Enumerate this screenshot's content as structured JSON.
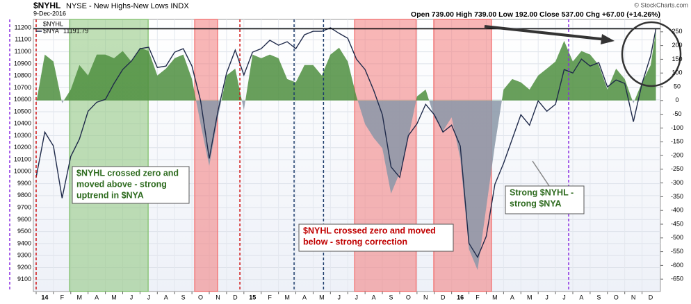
{
  "chart_data": {
    "type": "line",
    "title": "$NYHL",
    "subtitle": "NYSE - New Highs-New Lows INDX",
    "date": "9-Dec-2016",
    "ohlc": "Open 739.00 High 739.00 Low 192.00 Close 537.00 Chg +67.00 (+14.26%)",
    "credit": "© StockCharts.com",
    "xlim": [
      -0.16,
      36.06
    ],
    "xticks": [
      {
        "value": 0,
        "label": "14"
      },
      {
        "value": 1,
        "label": "F"
      },
      {
        "value": 2,
        "label": "M"
      },
      {
        "value": 3,
        "label": "A"
      },
      {
        "value": 4,
        "label": "M"
      },
      {
        "value": 5,
        "label": "J"
      },
      {
        "value": 6,
        "label": "J"
      },
      {
        "value": 7,
        "label": "A"
      },
      {
        "value": 8,
        "label": "S"
      },
      {
        "value": 9,
        "label": "O"
      },
      {
        "value": 10,
        "label": "N"
      },
      {
        "value": 11,
        "label": "D"
      },
      {
        "value": 12,
        "label": "15"
      },
      {
        "value": 13,
        "label": "F"
      },
      {
        "value": 14,
        "label": "M"
      },
      {
        "value": 15,
        "label": "A"
      },
      {
        "value": 16,
        "label": "M"
      },
      {
        "value": 17,
        "label": "J"
      },
      {
        "value": 18,
        "label": "J"
      },
      {
        "value": 19,
        "label": "A"
      },
      {
        "value": 20,
        "label": "S"
      },
      {
        "value": 21,
        "label": "O"
      },
      {
        "value": 22,
        "label": "N"
      },
      {
        "value": 23,
        "label": "D"
      },
      {
        "value": 24,
        "label": "16"
      },
      {
        "value": 25,
        "label": "F"
      },
      {
        "value": 26,
        "label": "M"
      },
      {
        "value": 27,
        "label": "A"
      },
      {
        "value": 28,
        "label": "M"
      },
      {
        "value": 29,
        "label": "J"
      },
      {
        "value": 30,
        "label": "J"
      },
      {
        "value": 31,
        "label": "A"
      },
      {
        "value": 32,
        "label": "S"
      },
      {
        "value": 33,
        "label": "O"
      },
      {
        "value": 34,
        "label": "N"
      },
      {
        "value": 35,
        "label": "D"
      }
    ],
    "ylim": [
      9000,
      11270
    ],
    "yticks": [
      9100,
      9200,
      9300,
      9400,
      9500,
      9600,
      9700,
      9800,
      9900,
      10000,
      10100,
      10200,
      10300,
      10400,
      10500,
      10600,
      10700,
      10800,
      10900,
      11000,
      11100,
      11200
    ],
    "y2lim": [
      -695,
      295
    ],
    "y2ticks": [
      -650,
      -600,
      -550,
      -500,
      -450,
      -400,
      -350,
      -300,
      -250,
      -200,
      -150,
      -100,
      -50,
      0,
      50,
      100,
      150,
      200,
      250
    ],
    "grid": true,
    "x": [
      0,
      0.5,
      1,
      1.5,
      2,
      2.5,
      3,
      3.5,
      4,
      4.5,
      5,
      5.5,
      6,
      6.5,
      7,
      7.5,
      8,
      8.5,
      9,
      9.5,
      10,
      10.5,
      11,
      11.5,
      12,
      12.5,
      13,
      13.5,
      14,
      14.5,
      15,
      15.5,
      16,
      16.5,
      17,
      17.5,
      18,
      18.5,
      19,
      19.5,
      20,
      20.5,
      21,
      21.5,
      22,
      22.5,
      23,
      23.5,
      24,
      24.5,
      25,
      25.5,
      26,
      26.5,
      27,
      27.5,
      28,
      28.5,
      29,
      29.5,
      30,
      30.5,
      31,
      31.5,
      32,
      32.5,
      33,
      33.5,
      34,
      34.5,
      35,
      35.5,
      35.8
    ],
    "series": [
      {
        "name": "$NYHL",
        "axis": "y2",
        "style": "area",
        "color": "#4e8f3f",
        "negative_color": "#8a97a8",
        "values": [
          -10,
          167,
          142,
          -10,
          40,
          129,
          91,
          167,
          167,
          154,
          180,
          142,
          192,
          180,
          91,
          116,
          154,
          167,
          78,
          -86,
          -238,
          -61,
          91,
          116,
          -35,
          167,
          154,
          167,
          154,
          78,
          66,
          129,
          129,
          91,
          167,
          192,
          142,
          15,
          -86,
          -136,
          -174,
          -339,
          -263,
          -136,
          15,
          40,
          -61,
          -111,
          -61,
          -212,
          -541,
          -617,
          -389,
          -162,
          40,
          78,
          66,
          40,
          91,
          116,
          142,
          217,
          142,
          180,
          167,
          129,
          40,
          116,
          78,
          -10,
          66,
          129,
          253
        ]
      },
      {
        "name": "$NYA",
        "style": "line",
        "color": "#1f2a4a",
        "last_value": 11191.79,
        "values": [
          9953,
          10330,
          10214,
          9779,
          10127,
          10272,
          10504,
          10579,
          10603,
          10736,
          10852,
          10922,
          11026,
          11038,
          10869,
          10881,
          10997,
          11026,
          10881,
          10591,
          10110,
          10504,
          10823,
          11014,
          10806,
          10997,
          11026,
          11096,
          11055,
          11084,
          11026,
          11142,
          11171,
          11171,
          11200,
          11154,
          11113,
          10939,
          10852,
          10678,
          10475,
          10040,
          9953,
          10301,
          10400,
          10562,
          10475,
          10330,
          10388,
          10214,
          9402,
          9286,
          9460,
          9895,
          10069,
          10272,
          10475,
          10388,
          10591,
          10504,
          10562,
          10852,
          10823,
          10939,
          10881,
          10910,
          10707,
          10765,
          10736,
          10417,
          10736,
          10968,
          11191.79
        ]
      }
    ],
    "bands": [
      {
        "from": 1.93,
        "to": 6.47,
        "color": "#8cc57a"
      },
      {
        "from": 9.16,
        "to": 10.48,
        "color": "#f27a7a"
      },
      {
        "from": 18.4,
        "to": 21.95,
        "color": "#f27a7a"
      },
      {
        "from": 22.97,
        "to": 26.3,
        "color": "#f27a7a"
      }
    ],
    "vlines": [
      {
        "x": 0,
        "color": "#d01010"
      },
      {
        "x": 11.77,
        "color": "#d01010"
      },
      {
        "x": 14.9,
        "color": "#1a3a6a"
      },
      {
        "x": 16.6,
        "color": "#1a3a6a"
      },
      {
        "x": 30.76,
        "color": "#8a2be2"
      }
    ],
    "annotations": [
      {
        "color": "#2e6b1f",
        "lines": [
          "$NYHL crossed zero and",
          "moved above  - strong",
          "uptrend in $NYA"
        ]
      },
      {
        "color": "#c00000",
        "lines": [
          "$NYHL crossed zero and moved",
          "below  - strong correction"
        ]
      },
      {
        "color": "#2e6b1f",
        "lines": [
          "Strong $NYHL -",
          "strong $NYA"
        ]
      }
    ]
  }
}
